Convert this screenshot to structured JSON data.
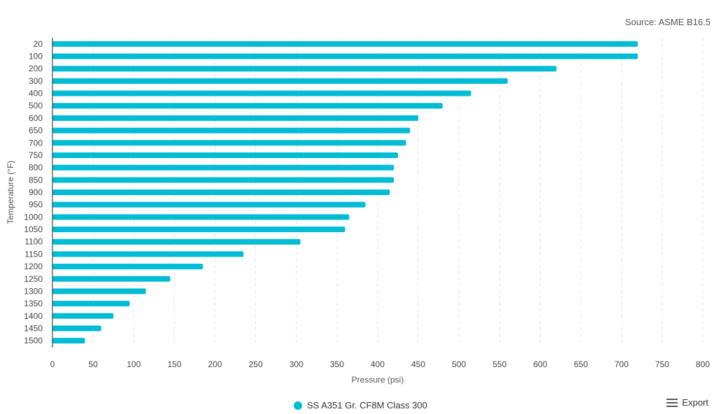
{
  "source": "Source: ASME B16.5",
  "export_label": "Export",
  "colors": {
    "bar": "#00bcd4",
    "grid": "#e6e6e6",
    "axis": "#222222",
    "text": "#444444"
  },
  "chart_data": {
    "type": "bar",
    "orientation": "horizontal",
    "title": "",
    "xlabel": "Pressure (psi)",
    "ylabel": "Temperature (°F)",
    "xlim": [
      0,
      800
    ],
    "x_ticks": [
      0,
      50,
      100,
      150,
      200,
      250,
      300,
      350,
      400,
      450,
      500,
      550,
      600,
      650,
      700,
      750,
      800
    ],
    "grid": "vertical dashed",
    "legend_position": "bottom-center",
    "categories": [
      "20",
      "100",
      "200",
      "300",
      "400",
      "500",
      "600",
      "650",
      "700",
      "750",
      "800",
      "850",
      "900",
      "950",
      "1000",
      "1050",
      "1100",
      "1150",
      "1200",
      "1250",
      "1300",
      "1350",
      "1400",
      "1450",
      "1500"
    ],
    "series": [
      {
        "name": "SS A351 Gr. CF8M Class 300",
        "values": [
          720,
          720,
          620,
          560,
          515,
          480,
          450,
          440,
          435,
          425,
          420,
          420,
          415,
          385,
          365,
          360,
          305,
          235,
          185,
          145,
          115,
          95,
          75,
          60,
          40
        ]
      }
    ]
  }
}
